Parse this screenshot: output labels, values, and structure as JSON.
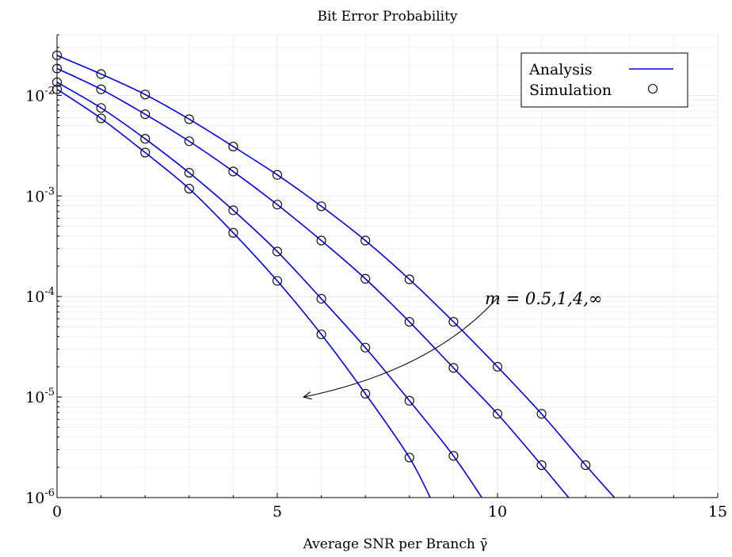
{
  "chart_data": {
    "type": "line",
    "title": "Bit Error Probability",
    "xlabel": "Average SNR per Branch γ̄",
    "ylabel": "",
    "xlim": [
      0,
      15
    ],
    "ylim": [
      1e-06,
      0.04
    ],
    "yscale": "log",
    "grid": true,
    "legend_position": "top-right",
    "x_ticks": [
      0,
      5,
      10,
      15
    ],
    "y_ticks": [
      {
        "value": 0.01,
        "base": "10",
        "exp": "-2"
      },
      {
        "value": 0.001,
        "base": "10",
        "exp": "-3"
      },
      {
        "value": 0.0001,
        "base": "10",
        "exp": "-4"
      },
      {
        "value": 1e-05,
        "base": "10",
        "exp": "-5"
      },
      {
        "value": 1e-06,
        "base": "10",
        "exp": "-6"
      }
    ],
    "legend": [
      {
        "label": "Analysis",
        "marker": "line",
        "color": "#0000e0"
      },
      {
        "label": "Simulation",
        "marker": "circle",
        "color": "#000000"
      }
    ],
    "annotation": {
      "text": "m = 0.5,1,4,∞",
      "arrow_from": [
        9.4,
        9e-05
      ],
      "arrow_to": [
        5.6,
        1e-05
      ]
    },
    "series": [
      {
        "analysis": {
          "x": [
            0,
            1,
            2,
            3,
            4,
            5,
            6,
            7,
            8,
            9,
            10,
            11,
            12,
            12.8
          ],
          "y": [
            0.025,
            0.0163,
            0.0102,
            0.0058,
            0.0031,
            0.00162,
            0.00079,
            0.00036,
            0.000148,
            5.6e-05,
            2e-05,
            6.8e-06,
            2.1e-06,
            8.5e-07
          ]
        },
        "simulation": {
          "x": [
            0,
            1,
            2,
            3,
            4,
            5,
            6,
            7,
            8,
            9,
            10,
            11,
            12
          ],
          "y": [
            0.025,
            0.0163,
            0.0102,
            0.0058,
            0.0031,
            0.00162,
            0.00079,
            0.00036,
            0.000148,
            5.6e-05,
            2e-05,
            6.8e-06,
            2.1e-06
          ]
        }
      },
      {
        "analysis": {
          "x": [
            0,
            1,
            2,
            3,
            4,
            5,
            6,
            7,
            8,
            9,
            10,
            11,
            11.7
          ],
          "y": [
            0.0185,
            0.0115,
            0.0065,
            0.0035,
            0.00175,
            0.00082,
            0.00036,
            0.00015,
            5.6e-05,
            1.95e-05,
            6.8e-06,
            2.1e-06,
            9e-07
          ]
        },
        "simulation": {
          "x": [
            0,
            1,
            2,
            3,
            4,
            5,
            6,
            7,
            8,
            9,
            10,
            11
          ],
          "y": [
            0.0185,
            0.0115,
            0.0065,
            0.0035,
            0.00175,
            0.00082,
            0.00036,
            0.00015,
            5.6e-05,
            1.95e-05,
            6.8e-06,
            2.1e-06
          ]
        }
      },
      {
        "analysis": {
          "x": [
            0,
            1,
            2,
            3,
            4,
            5,
            6,
            7,
            8,
            9,
            9.75
          ],
          "y": [
            0.0135,
            0.0075,
            0.0037,
            0.0017,
            0.00072,
            0.00028,
            9.5e-05,
            3.1e-05,
            9.2e-06,
            2.6e-06,
            8.5e-07
          ]
        },
        "simulation": {
          "x": [
            0,
            1,
            2,
            3,
            4,
            5,
            6,
            7,
            8,
            9
          ],
          "y": [
            0.0135,
            0.0075,
            0.0037,
            0.0017,
            0.00072,
            0.00028,
            9.5e-05,
            3.1e-05,
            9.2e-06,
            2.6e-06
          ]
        }
      },
      {
        "analysis": {
          "x": [
            0,
            1,
            2,
            3,
            4,
            5,
            6,
            7,
            8,
            8.55
          ],
          "y": [
            0.0115,
            0.0059,
            0.0027,
            0.00118,
            0.00043,
            0.000143,
            4.2e-05,
            1.08e-05,
            2.5e-06,
            8.5e-07
          ]
        },
        "simulation": {
          "x": [
            0,
            1,
            2,
            3,
            4,
            5,
            6,
            7,
            8
          ],
          "y": [
            0.0115,
            0.0059,
            0.0027,
            0.00118,
            0.00043,
            0.000143,
            4.2e-05,
            1.08e-05,
            2.5e-06
          ]
        }
      }
    ]
  },
  "colors": {
    "analysis_line": "#0000e0",
    "marker": "#000000",
    "grid": "#e6e6e6",
    "minor_grid": "#f0f0f0"
  }
}
